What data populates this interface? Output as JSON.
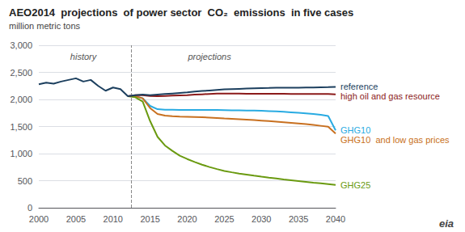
{
  "chart_data": {
    "type": "line",
    "title": "AEO2014  projections  of power sector  CO₂  emissions  in five cases",
    "subtitle": "million metric tons",
    "xlim": [
      2000,
      2040
    ],
    "xticks": [
      2000,
      2005,
      2010,
      2015,
      2020,
      2025,
      2030,
      2035,
      2040
    ],
    "ylim": [
      0,
      3000
    ],
    "yticks": [
      0,
      500,
      {
        "value": 1000,
        "label": "1,000"
      },
      {
        "value": 1500,
        "label": "1,500"
      },
      {
        "value": 2000,
        "label": "2,000"
      },
      {
        "value": 2500,
        "label": "2,500"
      },
      {
        "value": 3000,
        "label": "3,000"
      }
    ],
    "grid": true,
    "vline": 2012.5,
    "annotations": [
      {
        "text": "history",
        "x": 2006,
        "y": 2870
      },
      {
        "text": "projections",
        "x": 2023,
        "y": 2870
      },
      {
        "text": "eia"
      }
    ],
    "series": [
      {
        "name": "reference",
        "color": "#1c3f5e",
        "x": [
          2000,
          2001,
          2002,
          2003,
          2004,
          2005,
          2006,
          2007,
          2008,
          2009,
          2010,
          2011,
          2012,
          2012,
          2013,
          2014,
          2015,
          2016,
          2017,
          2018,
          2019,
          2020,
          2021,
          2022,
          2023,
          2024,
          2025,
          2026,
          2027,
          2028,
          2029,
          2030,
          2031,
          2032,
          2033,
          2034,
          2035,
          2036,
          2037,
          2038,
          2039,
          2040
        ],
        "values": [
          2280,
          2310,
          2290,
          2330,
          2360,
          2390,
          2330,
          2360,
          2250,
          2160,
          2220,
          2190,
          2060,
          2060,
          2080,
          2090,
          2080,
          2090,
          2100,
          2110,
          2120,
          2130,
          2145,
          2155,
          2165,
          2175,
          2185,
          2190,
          2195,
          2200,
          2205,
          2210,
          2212,
          2215,
          2217,
          2218,
          2218,
          2220,
          2222,
          2225,
          2228,
          2232
        ]
      },
      {
        "name": "high oil and gas resource",
        "color": "#8b1a1a",
        "x": [
          2012,
          2013,
          2014,
          2015,
          2016,
          2017,
          2018,
          2019,
          2020,
          2021,
          2022,
          2023,
          2024,
          2025,
          2026,
          2027,
          2028,
          2029,
          2030,
          2031,
          2032,
          2033,
          2034,
          2035,
          2036,
          2037,
          2038,
          2039,
          2040
        ],
        "values": [
          2060,
          2080,
          2080,
          2065,
          2060,
          2065,
          2070,
          2075,
          2080,
          2088,
          2095,
          2102,
          2108,
          2110,
          2110,
          2108,
          2106,
          2105,
          2105,
          2105,
          2104,
          2103,
          2102,
          2101,
          2100,
          2100,
          2100,
          2099,
          2095
        ]
      },
      {
        "name": "GHG10",
        "color": "#29abe2",
        "x": [
          2012,
          2013,
          2014,
          2015,
          2016,
          2017,
          2018,
          2019,
          2020,
          2021,
          2022,
          2023,
          2024,
          2025,
          2026,
          2027,
          2028,
          2029,
          2030,
          2031,
          2032,
          2033,
          2034,
          2035,
          2036,
          2037,
          2038,
          2039,
          2040
        ],
        "values": [
          2060,
          2060,
          2020,
          1880,
          1820,
          1810,
          1808,
          1806,
          1805,
          1805,
          1805,
          1805,
          1805,
          1803,
          1800,
          1798,
          1796,
          1793,
          1790,
          1785,
          1780,
          1772,
          1763,
          1753,
          1742,
          1730,
          1715,
          1695,
          1430
        ]
      },
      {
        "name": "GHG10  and low gas prices",
        "color": "#c87020",
        "x": [
          2012,
          2013,
          2014,
          2015,
          2016,
          2017,
          2018,
          2019,
          2020,
          2021,
          2022,
          2023,
          2024,
          2025,
          2026,
          2027,
          2028,
          2029,
          2030,
          2031,
          2032,
          2033,
          2034,
          2035,
          2036,
          2037,
          2038,
          2039,
          2040
        ],
        "values": [
          2060,
          2060,
          2020,
          1840,
          1730,
          1700,
          1690,
          1682,
          1678,
          1674,
          1670,
          1665,
          1658,
          1650,
          1643,
          1636,
          1628,
          1620,
          1610,
          1600,
          1590,
          1579,
          1568,
          1556,
          1543,
          1529,
          1513,
          1495,
          1370
        ]
      },
      {
        "name": "GHG25",
        "color": "#6a9a10",
        "x": [
          2012,
          2013,
          2014,
          2015,
          2016,
          2017,
          2018,
          2019,
          2020,
          2021,
          2022,
          2023,
          2024,
          2025,
          2026,
          2027,
          2028,
          2029,
          2030,
          2031,
          2032,
          2033,
          2034,
          2035,
          2036,
          2037,
          2038,
          2039,
          2040
        ],
        "values": [
          2060,
          2040,
          1960,
          1600,
          1310,
          1150,
          1050,
          960,
          900,
          845,
          795,
          752,
          715,
          680,
          655,
          632,
          612,
          592,
          573,
          556,
          540,
          524,
          509,
          494,
          479,
          464,
          450,
          436,
          420
        ]
      }
    ]
  }
}
